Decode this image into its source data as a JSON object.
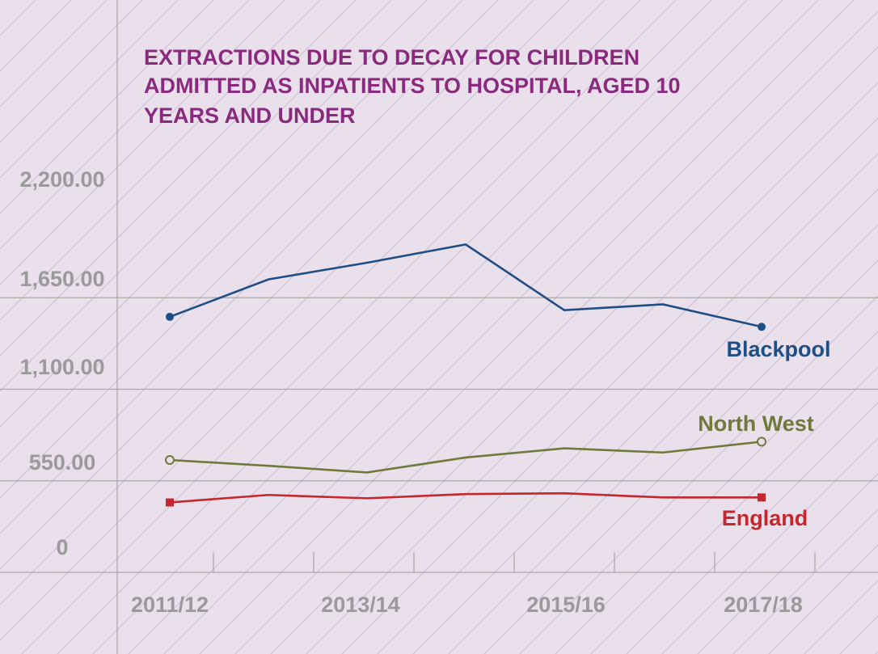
{
  "colors": {
    "background": "#eae0ec",
    "hatch": "#cdc1d6",
    "grid": "#a9a9a9",
    "title": "#8a2a7e",
    "tick": "#9a9a9a"
  },
  "chart_data": {
    "type": "line",
    "title_lines": [
      "EXTRACTIONS DUE TO DECAY FOR CHILDREN",
      "ADMITTED AS INPATIENTS TO HOSPITAL, AGED 10",
      "YEARS AND UNDER"
    ],
    "xlabel": "",
    "ylabel": "",
    "x": [
      "2011/12",
      "2012/13",
      "2013/14",
      "2014/15",
      "2015/16",
      "2016/17",
      "2017/18"
    ],
    "x_tick_labels": [
      "2011/12",
      "2013/14",
      "2015/16",
      "2017/18"
    ],
    "y_tick_values": [
      0,
      550,
      1100,
      1650,
      2200
    ],
    "y_tick_labels": [
      "0",
      "550.00",
      "1,100.00",
      "1,650.00",
      "2,200.00"
    ],
    "ylim": [
      0,
      2200
    ],
    "grid": true,
    "legend": "inline labels at line ends",
    "series": [
      {
        "name": "Blackpool",
        "color": "#1f4e86",
        "marker": "filled-circle",
        "values": [
          1535,
          1760,
          1860,
          1970,
          1575,
          1610,
          1475
        ]
      },
      {
        "name": "North West",
        "color": "#6f7a3a",
        "marker": "open-circle",
        "values": [
          675,
          640,
          600,
          690,
          745,
          720,
          785
        ]
      },
      {
        "name": "England",
        "color": "#c4282e",
        "marker": "filled-square",
        "values": [
          420,
          465,
          445,
          470,
          475,
          450,
          450
        ]
      }
    ]
  }
}
